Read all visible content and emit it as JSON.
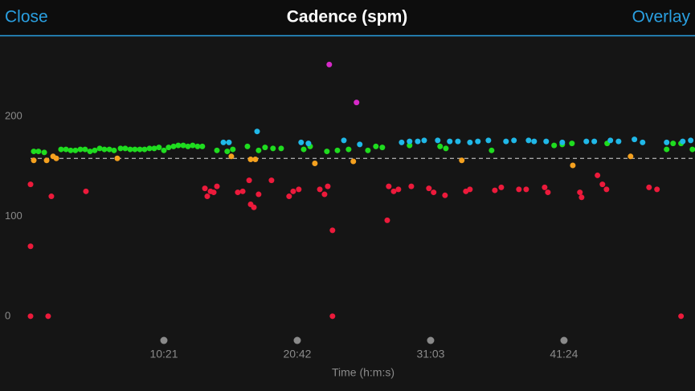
{
  "header": {
    "close": "Close",
    "overlay": "Overlay"
  },
  "chart_data": {
    "type": "scatter",
    "title": "Cadence (spm)",
    "x_label": "Time (h:m:s)",
    "xlim": [
      0,
      3094
    ],
    "ylim": [
      -13,
      278
    ],
    "xticks": [
      {
        "value": 621,
        "label": "10:21"
      },
      {
        "value": 1242,
        "label": "20:42"
      },
      {
        "value": 1863,
        "label": "31:03"
      },
      {
        "value": 2484,
        "label": "41:24"
      }
    ],
    "yticks": [
      0,
      100,
      200
    ],
    "grid": false,
    "reference_line": 158,
    "series": [
      {
        "color": "#1fdc1f",
        "x": [
          15,
          37,
          64,
          142,
          165,
          187,
          209,
          232,
          254,
          277,
          299,
          322,
          344,
          367,
          389,
          419,
          441,
          464,
          486,
          509,
          531,
          554,
          576,
          598,
          621,
          643,
          666,
          688,
          711,
          733,
          755,
          778,
          800,
          868,
          916,
          942,
          1010,
          1062,
          1092,
          1129,
          1167,
          1272,
          1302,
          1380,
          1429,
          1481,
          1571,
          1608,
          1638,
          1765,
          1907,
          1934,
          2147,
          2438,
          2476,
          2521,
          2685,
          2962,
          2992,
          3029,
          3082
        ],
        "values": [
          165,
          165,
          164,
          167,
          167,
          166,
          166,
          167,
          167,
          165,
          166,
          168,
          167,
          167,
          166,
          168,
          168,
          167,
          167,
          167,
          167,
          168,
          168,
          169,
          166,
          169,
          170,
          171,
          171,
          170,
          171,
          170,
          170,
          166,
          165,
          167,
          170,
          166,
          169,
          168,
          168,
          167,
          170,
          165,
          166,
          167,
          166,
          170,
          169,
          171,
          170,
          168,
          166,
          171,
          172,
          173,
          173,
          167,
          173,
          173,
          167
        ]
      },
      {
        "color": "#20b8e8",
        "x": [
          898,
          924,
          1055,
          1260,
          1294,
          1459,
          1533,
          1728,
          1765,
          1803,
          1833,
          1896,
          1952,
          1990,
          2046,
          2083,
          2132,
          2214,
          2251,
          2319,
          2345,
          2401,
          2476,
          2588,
          2625,
          2700,
          2738,
          2812,
          2850,
          2962,
          3037,
          3074
        ],
        "values": [
          174,
          174,
          185,
          174,
          173,
          176,
          172,
          174,
          175,
          175,
          176,
          176,
          175,
          175,
          174,
          175,
          176,
          175,
          176,
          176,
          175,
          175,
          174,
          175,
          175,
          176,
          175,
          177,
          174,
          174,
          175,
          176
        ]
      },
      {
        "color": "#f5a11f",
        "x": [
          15,
          75,
          105,
          120,
          404,
          935,
          1025,
          1047,
          1324,
          1503,
          2008,
          2525,
          2794
        ],
        "values": [
          156,
          156,
          160,
          158,
          158,
          160,
          157,
          157,
          153,
          155,
          156,
          151,
          160
        ]
      },
      {
        "color": "#ec1a3b",
        "x": [
          0,
          0,
          0,
          82,
          97,
          258,
          812,
          823,
          838,
          853,
          868,
          965,
          988,
          1018,
          1025,
          1040,
          1062,
          1122,
          1204,
          1223,
          1249,
          1347,
          1369,
          1384,
          1406,
          1406,
          1661,
          1668,
          1691,
          1713,
          1773,
          1855,
          1877,
          1930,
          2027,
          2046,
          2162,
          2192,
          2274,
          2308,
          2394,
          2409,
          2558,
          2566,
          2640,
          2663,
          2682,
          2880,
          2917,
          3029
        ],
        "values": [
          132,
          70,
          0,
          0,
          120,
          125,
          128,
          120,
          125,
          124,
          130,
          124,
          125,
          136,
          112,
          109,
          122,
          136,
          120,
          125,
          127,
          127,
          122,
          130,
          86,
          0,
          96,
          130,
          125,
          127,
          130,
          128,
          124,
          121,
          125,
          127,
          126,
          129,
          127,
          127,
          129,
          124,
          124,
          119,
          141,
          132,
          127,
          129,
          127,
          0
        ]
      },
      {
        "color": "#d629c8",
        "x": [
          1391,
          1518
        ],
        "values": [
          252,
          214
        ]
      }
    ]
  }
}
